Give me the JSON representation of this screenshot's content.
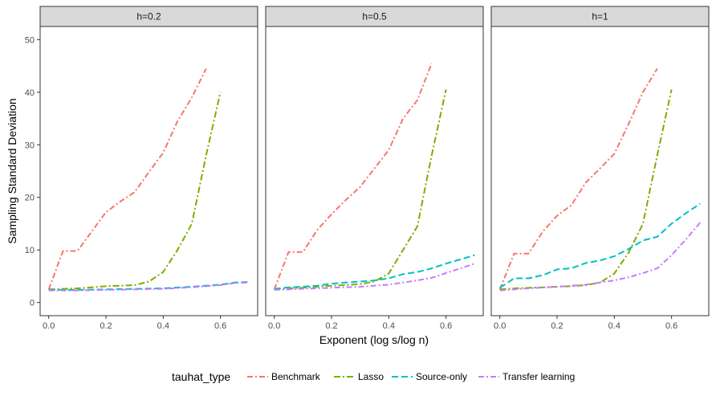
{
  "chart_data": {
    "type": "line",
    "xlabel": "Exponent (log s/log n)",
    "ylabel": "Sampling Standard Deviation",
    "xlim": [
      -0.03,
      0.73
    ],
    "ylim": [
      -2.5,
      52.5
    ],
    "x_ticks": [
      "0.0",
      "0.2",
      "0.4",
      "0.6"
    ],
    "x_tick_values": [
      0,
      0.2,
      0.4,
      0.6
    ],
    "y_ticks": [
      "0",
      "10",
      "20",
      "30",
      "40",
      "50"
    ],
    "y_tick_values": [
      0,
      10,
      20,
      30,
      40,
      50
    ],
    "legend": {
      "title": "tauhat_type",
      "position": "bottom",
      "entries": [
        {
          "label": "Benchmark",
          "color": "#F8766D",
          "dash": "7 3 2 3"
        },
        {
          "label": "Lasso",
          "color": "#7CAE00",
          "dash": "8 3 2 3"
        },
        {
          "label": "Source-only",
          "color": "#00BFC4",
          "dash": "8 4"
        },
        {
          "label": "Transfer learning",
          "color": "#C77CFF",
          "dash": "7 3 2 3"
        }
      ]
    },
    "panels": [
      {
        "label": "h=0.2",
        "series": [
          {
            "name": "Benchmark",
            "x": [
              0,
              0.05,
              0.1,
              0.15,
              0.2,
              0.25,
              0.3,
              0.35,
              0.4,
              0.45,
              0.5,
              0.55
            ],
            "y": [
              2.5,
              9.8,
              9.8,
              13.5,
              17.2,
              19.2,
              21.0,
              24.8,
              28.5,
              34.5,
              39.0,
              44.5
            ]
          },
          {
            "name": "Lasso",
            "x": [
              0,
              0.05,
              0.1,
              0.15,
              0.2,
              0.25,
              0.3,
              0.35,
              0.4,
              0.45,
              0.5,
              0.55,
              0.6
            ],
            "y": [
              2.5,
              2.6,
              2.7,
              2.9,
              3.1,
              3.2,
              3.3,
              4.0,
              5.8,
              10.0,
              15.0,
              28.0,
              40.0
            ]
          },
          {
            "name": "Source-only",
            "x": [
              0,
              0.1,
              0.2,
              0.3,
              0.4,
              0.5,
              0.6,
              0.65,
              0.7
            ],
            "y": [
              2.4,
              2.4,
              2.5,
              2.6,
              2.7,
              3.0,
              3.4,
              3.8,
              3.9
            ]
          },
          {
            "name": "Transfer learning",
            "x": [
              0,
              0.1,
              0.2,
              0.3,
              0.4,
              0.5,
              0.6,
              0.65,
              0.7
            ],
            "y": [
              2.3,
              2.3,
              2.4,
              2.5,
              2.6,
              2.9,
              3.3,
              3.7,
              3.8
            ]
          }
        ]
      },
      {
        "label": "h=0.5",
        "series": [
          {
            "name": "Benchmark",
            "x": [
              0,
              0.05,
              0.1,
              0.15,
              0.2,
              0.25,
              0.3,
              0.35,
              0.4,
              0.45,
              0.5,
              0.55
            ],
            "y": [
              2.5,
              9.6,
              9.6,
              13.8,
              16.8,
              19.5,
              22.0,
              25.5,
              29.0,
              35.0,
              38.5,
              45.5
            ]
          },
          {
            "name": "Lasso",
            "x": [
              0,
              0.05,
              0.1,
              0.15,
              0.2,
              0.25,
              0.3,
              0.35,
              0.4,
              0.45,
              0.5,
              0.55,
              0.6
            ],
            "y": [
              2.5,
              2.7,
              2.8,
              3.0,
              3.2,
              3.3,
              3.5,
              4.0,
              5.5,
              10.0,
              14.5,
              28.0,
              40.5
            ]
          },
          {
            "name": "Source-only",
            "x": [
              0,
              0.05,
              0.1,
              0.15,
              0.2,
              0.25,
              0.3,
              0.35,
              0.4,
              0.45,
              0.5,
              0.55,
              0.6,
              0.65,
              0.7
            ],
            "y": [
              2.6,
              2.9,
              3.0,
              3.2,
              3.6,
              3.8,
              4.0,
              4.2,
              4.6,
              5.4,
              5.8,
              6.5,
              7.4,
              8.2,
              9.0
            ]
          },
          {
            "name": "Transfer learning",
            "x": [
              0,
              0.1,
              0.2,
              0.3,
              0.4,
              0.45,
              0.5,
              0.55,
              0.6,
              0.65,
              0.7
            ],
            "y": [
              2.4,
              2.6,
              2.8,
              3.0,
              3.4,
              3.8,
              4.2,
              4.7,
              5.6,
              6.5,
              7.4
            ]
          }
        ]
      },
      {
        "label": "h=1",
        "series": [
          {
            "name": "Benchmark",
            "x": [
              0,
              0.05,
              0.1,
              0.15,
              0.2,
              0.25,
              0.3,
              0.35,
              0.4,
              0.45,
              0.5,
              0.55
            ],
            "y": [
              2.5,
              9.3,
              9.3,
              13.5,
              16.5,
              18.5,
              22.8,
              25.5,
              28.3,
              34.0,
              40.0,
              44.5
            ]
          },
          {
            "name": "Lasso",
            "x": [
              0,
              0.05,
              0.1,
              0.15,
              0.2,
              0.25,
              0.3,
              0.35,
              0.4,
              0.45,
              0.5,
              0.55,
              0.6
            ],
            "y": [
              2.5,
              2.7,
              2.8,
              2.9,
              3.0,
              3.1,
              3.3,
              3.8,
              5.5,
              9.5,
              15.0,
              28.0,
              40.5
            ]
          },
          {
            "name": "Source-only",
            "x": [
              0,
              0.05,
              0.1,
              0.15,
              0.2,
              0.25,
              0.3,
              0.35,
              0.4,
              0.45,
              0.5,
              0.55,
              0.6,
              0.65,
              0.7
            ],
            "y": [
              2.8,
              4.6,
              4.6,
              5.2,
              6.3,
              6.5,
              7.5,
              8.0,
              8.8,
              10.2,
              11.8,
              12.5,
              15.0,
              17.0,
              18.8
            ]
          },
          {
            "name": "Transfer learning",
            "x": [
              0,
              0.1,
              0.2,
              0.3,
              0.4,
              0.45,
              0.5,
              0.55,
              0.6,
              0.65,
              0.7
            ],
            "y": [
              2.3,
              2.7,
              3.0,
              3.4,
              4.2,
              4.8,
              5.6,
              6.5,
              9.0,
              12.0,
              15.2
            ]
          }
        ]
      }
    ]
  }
}
